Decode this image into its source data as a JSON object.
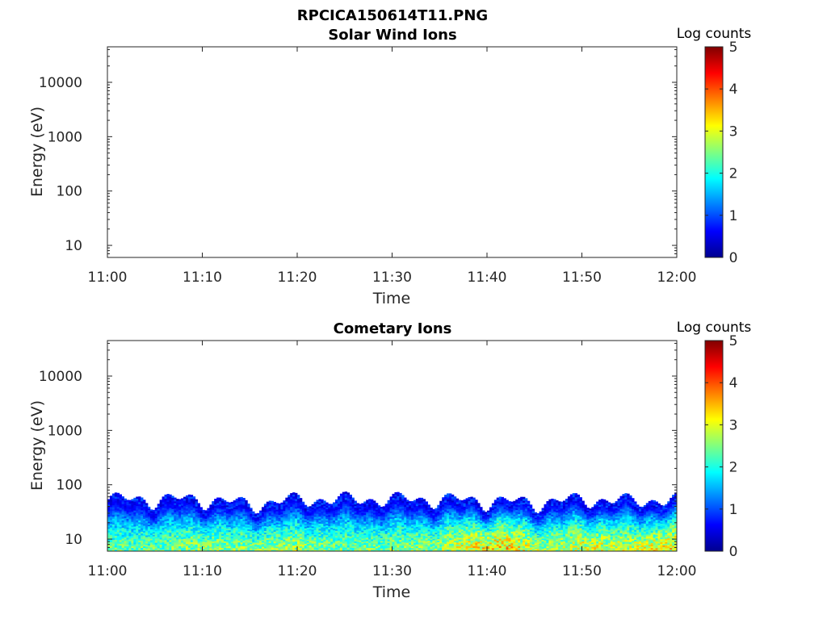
{
  "figure": {
    "title": "RPCICA150614T11.PNG"
  },
  "colormap": [
    "#00008f",
    "#0000ff",
    "#0080ff",
    "#00ffff",
    "#80ff80",
    "#ffff00",
    "#ff8000",
    "#ff0000",
    "#800000"
  ],
  "chart_data": [
    {
      "type": "heatmap",
      "title": "Solar Wind Ions",
      "xlabel": "Time",
      "ylabel": "Energy (eV)",
      "x_ticks": [
        "11:00",
        "11:10",
        "11:20",
        "11:30",
        "11:40",
        "11:50",
        "12:00"
      ],
      "x_range": [
        "11:00",
        "12:00"
      ],
      "y_scale": "log",
      "y_ticks": [
        10,
        100,
        1000,
        10000
      ],
      "y_tick_labels": [
        "10",
        "100",
        "1000",
        "10000"
      ],
      "ylim": [
        6,
        45000
      ],
      "colorbar": {
        "label": "Log counts",
        "range": [
          0,
          5
        ],
        "ticks": [
          "0",
          "1",
          "2",
          "3",
          "4",
          "5"
        ]
      },
      "data_description": "empty"
    },
    {
      "type": "heatmap",
      "title": "Cometary Ions",
      "xlabel": "Time",
      "ylabel": "Energy (eV)",
      "x_ticks": [
        "11:00",
        "11:10",
        "11:20",
        "11:30",
        "11:40",
        "11:50",
        "12:00"
      ],
      "x_range": [
        "11:00",
        "12:00"
      ],
      "y_scale": "log",
      "y_ticks": [
        10,
        100,
        1000,
        10000
      ],
      "y_tick_labels": [
        "10",
        "100",
        "1000",
        "10000"
      ],
      "ylim": [
        6,
        45000
      ],
      "colorbar": {
        "label": "Log counts",
        "range": [
          0,
          5
        ],
        "ticks": [
          "0",
          "1",
          "2",
          "3",
          "4",
          "5"
        ]
      },
      "upper_energy_envelope": {
        "time_min": [
          0,
          5,
          10,
          15,
          20,
          25,
          30,
          35,
          40,
          45,
          50,
          55,
          60
        ],
        "energy_eV": [
          75,
          75,
          75,
          60,
          75,
          75,
          75,
          75,
          70,
          65,
          75,
          70,
          75
        ]
      },
      "peak_log_counts": {
        "time_min": [
          0,
          5,
          10,
          15,
          20,
          25,
          30,
          35,
          38,
          42,
          46,
          50,
          55,
          60
        ],
        "log_counts": [
          2.5,
          2.6,
          2.8,
          2.7,
          2.8,
          2.6,
          2.7,
          2.8,
          3.3,
          3.5,
          2.8,
          3.2,
          3.0,
          3.4
        ]
      }
    }
  ]
}
